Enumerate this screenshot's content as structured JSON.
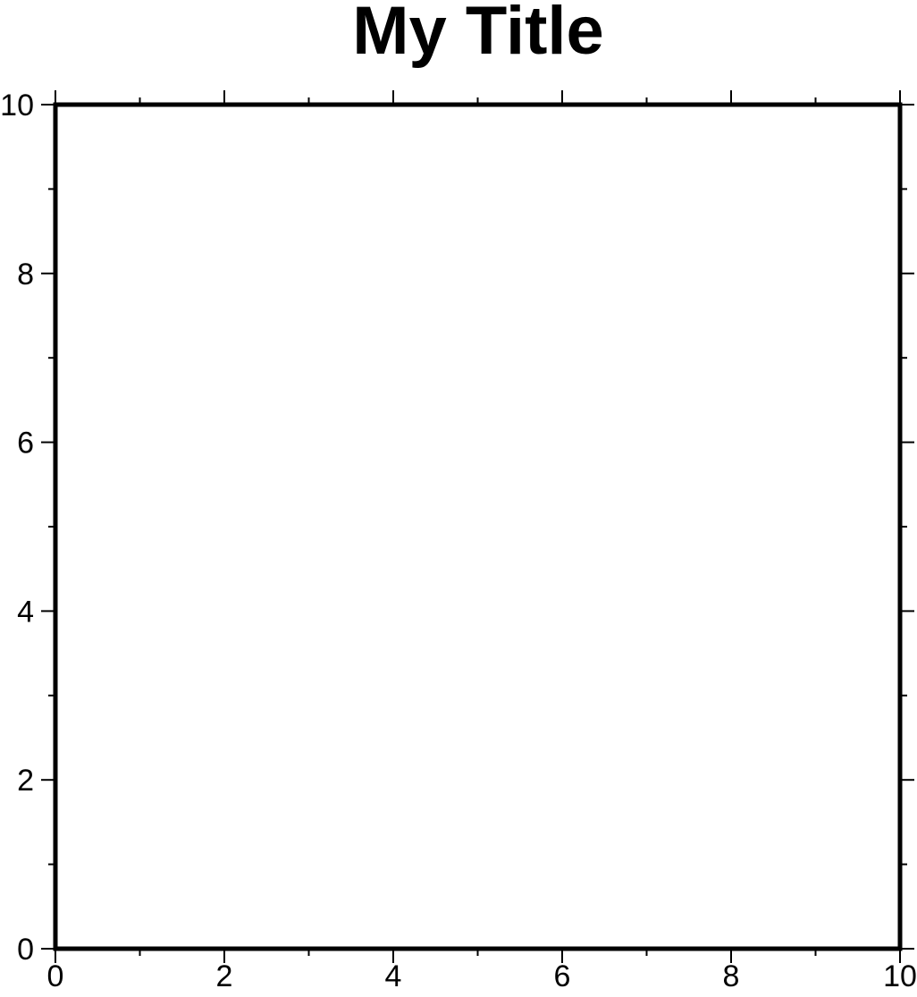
{
  "chart_data": {
    "type": "scatter",
    "title": "My Title",
    "xlabel": "",
    "ylabel": "",
    "xlim": [
      0,
      10
    ],
    "ylim": [
      0,
      10
    ],
    "x_major_ticks": [
      0,
      2,
      4,
      6,
      8,
      10
    ],
    "y_major_ticks": [
      0,
      2,
      4,
      6,
      8,
      10
    ],
    "x_minor_ticks": [
      1,
      3,
      5,
      7,
      9
    ],
    "y_minor_ticks": [
      1,
      3,
      5,
      7,
      9
    ],
    "x_tick_labels": [
      "0",
      "2",
      "4",
      "6",
      "8",
      "10"
    ],
    "y_tick_labels": [
      "0",
      "2",
      "4",
      "6",
      "8",
      "10"
    ],
    "series": [],
    "grid": false,
    "frame_color": "#000000",
    "background_color": "#ffffff"
  }
}
